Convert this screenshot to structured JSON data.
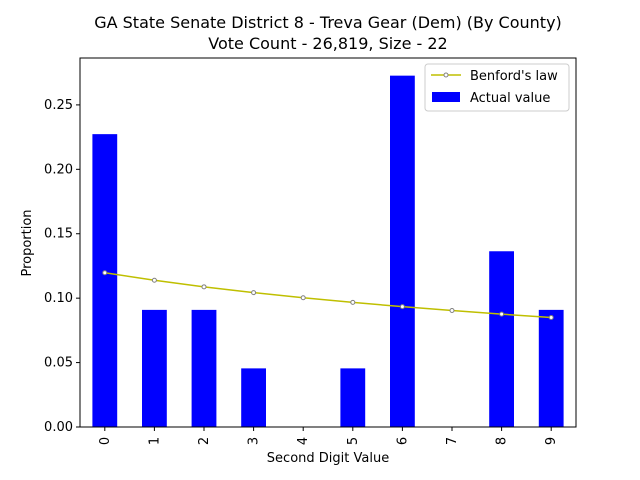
{
  "chart_data": {
    "type": "bar",
    "title": "GA State Senate District 8 - Treva Gear (Dem) (By County)",
    "subtitle": "Vote Count - 26,819, Size - 22",
    "xlabel": "Second Digit Value",
    "ylabel": "Proportion",
    "categories": [
      "0",
      "1",
      "2",
      "3",
      "4",
      "5",
      "6",
      "7",
      "8",
      "9"
    ],
    "ylim": [
      0,
      0.2864
    ],
    "yticks": [
      "0.00",
      "0.05",
      "0.10",
      "0.15",
      "0.20",
      "0.25"
    ],
    "grid": false,
    "legend_position": "top-right",
    "series": [
      {
        "name": "Actual value",
        "type": "bar",
        "color": "#0000ff",
        "values": [
          0.2273,
          0.0909,
          0.0909,
          0.0455,
          0.0,
          0.0455,
          0.2727,
          0.0,
          0.1364,
          0.0909
        ]
      },
      {
        "name": "Benford's law",
        "type": "line",
        "color": "#bfbf00",
        "marker_color": "#808080",
        "values": [
          0.1197,
          0.1139,
          0.1088,
          0.1043,
          0.1003,
          0.0967,
          0.0934,
          0.0904,
          0.0876,
          0.085
        ]
      }
    ]
  }
}
